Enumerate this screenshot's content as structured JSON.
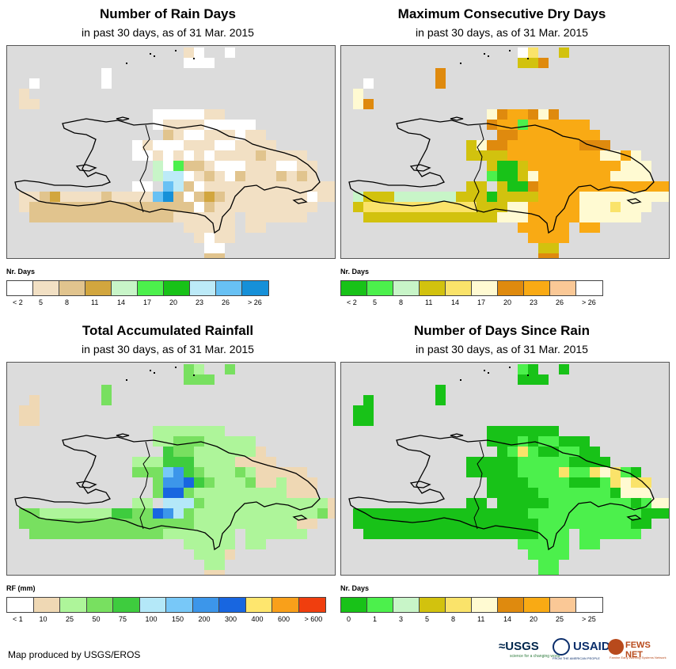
{
  "panels": [
    {
      "title": "Number of Rain Days",
      "subtitle": "in past 30 days, as of 31 Mar. 2015",
      "legend_title": "Nr. Days",
      "colors": [
        "#ffffff",
        "#f2e0c4",
        "#e1c48e",
        "#d2a63e",
        "#c8f5c8",
        "#4cf04c",
        "#18c218",
        "#bceaf8",
        "#68c1f4",
        "#1690d8"
      ],
      "labels": [
        "< 2",
        "5",
        "8",
        "11",
        "14",
        "17",
        "20",
        "23",
        "26",
        "> 26"
      ],
      "rows": [
        "                 10  0           ",
        "                 000             ",
        "         0                       ",
        "  0      0                       ",
        " 1                               ",
        " 11                              ",
        "              0000011            ",
        "              0111100000         ",
        "               2100111011        ",
        "            01000111001111       ",
        "            00101010111121111    ",
        "              4052210001110011   ",
        "              4770121021112121   ",
        "            00 872011111111111111",
        " 1123111121111892023211111111011 ",
        " 12222222222222222021111111111   ",
        "  22222222222222111111 111111    ",
        "                 11111 11        ",
        "                  1011           ",
        "                   00            ",
        "                   22            "
      ]
    },
    {
      "title": "Maximum Consecutive Dry Days",
      "subtitle": "in past 30 days, as of 31 Mar. 2015",
      "legend_title": "Nr. Days",
      "colors": [
        "#18c218",
        "#4cf04c",
        "#c8f5c8",
        "#d2c20e",
        "#fae36a",
        "#fffad2",
        "#df8a0e",
        "#f9aa14",
        "#fac896",
        "#ffffff"
      ],
      "labels": [
        "< 2",
        "5",
        "8",
        "11",
        "14",
        "17",
        "20",
        "23",
        "26",
        "> 26"
      ],
      "rows": [
        "                 94  3           ",
        "                 336             ",
        "         6                       ",
        "  9      6                       ",
        " 5                               ",
        " 56                              ",
        "              5677656            ",
        "              6771777777         ",
        "               6677777777        ",
        "            35667777777666       ",
        "            33337777777775575    ",
        "              3003777777777555   ",
        "              1003577777775555   ",
        "            33 300677777777777777",
        " 2333222222333033337777555555555 ",
        " 34444444444433355777775554555   ",
        "  333333333333355577777555555    ",
        "                 77777 77        ",
        "                  7777           ",
        "                   33            ",
        "                   66            "
      ]
    },
    {
      "title": "Total Accumulated Rainfall",
      "subtitle": "in past 30 days, as of 31 Mar. 2015",
      "legend_title": "RF (mm)",
      "colors": [
        "#ffffff",
        "#efd8b4",
        "#aef59a",
        "#78e060",
        "#3ecc3e",
        "#b4e8f8",
        "#78c8f8",
        "#3c96ea",
        "#1866e0",
        "#fee66e",
        "#f9a01a",
        "#f03e0e"
      ],
      "labels": [
        "< 1",
        "10",
        "25",
        "50",
        "75",
        "100",
        "150",
        "200",
        "300",
        "400",
        "600",
        "> 600"
      ],
      "rows": [
        "                 32  3           ",
        "                 333             ",
        "         3                       ",
        "  1      3                       ",
        " 11                              ",
        " 11                              ",
        "              2222222            ",
        "              2233322222         ",
        "               4332222221        ",
        "            22244422221111       ",
        "            33367432223211111    ",
        "              3778432223112111   ",
        "              3883222222222111   ",
        "            22 555322222222222211",
        " 3322222224433875322222222222231 ",
        " 33333333333333333222222222211   ",
        "  33333333333332222222 222222    ",
        "                 22222 22        ",
        "                  2221           ",
        "                   22            ",
        "                   11            "
      ]
    },
    {
      "title": "Number of Days Since Rain",
      "subtitle": "in past 30 days, as of 31 Mar. 2015",
      "legend_title": "Nr. Days",
      "colors": [
        "#18c218",
        "#4cf04c",
        "#c8f5c8",
        "#d2c20e",
        "#fae36a",
        "#fffad2",
        "#df8a0e",
        "#f9aa14",
        "#fac896",
        "#ffffff"
      ],
      "labels": [
        "0",
        "1",
        "3",
        "5",
        "8",
        "11",
        "14",
        "20",
        "25",
        "> 25"
      ],
      "rows": [
        "                 10  0           ",
        "                 000             ",
        "         0                       ",
        "  0      0                       ",
        " 00                              ",
        " 00                              ",
        "              0000000            ",
        "              0001011000         ",
        "               0141001100        ",
        "            00000111110000       ",
        "            00000111141145410    ",
        "              0000111100014544   ",
        "              0000011111110555   ",
        "            00 000001111111101558",
        " 0000000000000000011111111111000 ",
        " 00000000000000000011111111100   ",
        "  00000000000000000111 111111    ",
        "                 11111 11        ",
        "                  1111           ",
        "                   11            ",
        "                   11            "
      ]
    }
  ],
  "footer": "Map produced by USGS/EROS",
  "logos": {
    "usgs": "≈USGS",
    "usgs_tagline": "science for a changing world",
    "usaid": "USAID",
    "usaid_tagline": "FROM THE AMERICAN PEOPLE",
    "fews": "FEWS NET",
    "fews_tagline": "Famine Early Warning Systems Network"
  }
}
